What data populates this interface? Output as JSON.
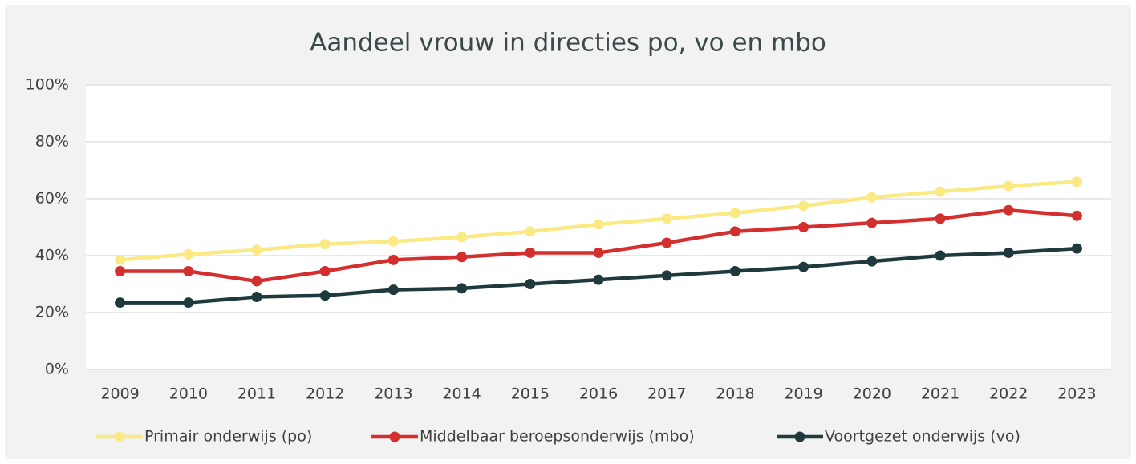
{
  "chart_data": {
    "type": "line",
    "title": "Aandeel vrouw in directies po, vo en mbo",
    "categories": [
      "2009",
      "2010",
      "2011",
      "2012",
      "2013",
      "2014",
      "2015",
      "2016",
      "2017",
      "2018",
      "2019",
      "2020",
      "2021",
      "2022",
      "2023"
    ],
    "series": [
      {
        "name": "Primair onderwijs (po)",
        "color": "#fbe983",
        "values": [
          38.5,
          40.5,
          42,
          44,
          45,
          46.5,
          48.5,
          51,
          53,
          55,
          57.5,
          60.5,
          62.5,
          64.5,
          66
        ]
      },
      {
        "name": "Middelbaar beroepsonderwijs (mbo)",
        "color": "#d32f2f",
        "values": [
          34.5,
          34.5,
          31,
          34.5,
          38.5,
          39.5,
          41,
          41,
          44.5,
          48.5,
          50,
          51.5,
          53,
          56,
          54
        ]
      },
      {
        "name": "Voortgezet onderwijs (vo)",
        "color": "#1f3a3d",
        "values": [
          23.5,
          23.5,
          25.5,
          26,
          28,
          28.5,
          30,
          31.5,
          33,
          34.5,
          36,
          38,
          40,
          41,
          42.5
        ]
      }
    ],
    "ylim": [
      0,
      100
    ],
    "yticks": [
      {
        "value": 0,
        "label": "0%"
      },
      {
        "value": 20,
        "label": "20%"
      },
      {
        "value": 40,
        "label": "40%"
      },
      {
        "value": 60,
        "label": "60%"
      },
      {
        "value": 80,
        "label": "80%"
      },
      {
        "value": 100,
        "label": "100%"
      }
    ],
    "grid": true,
    "legend": "bottom"
  }
}
